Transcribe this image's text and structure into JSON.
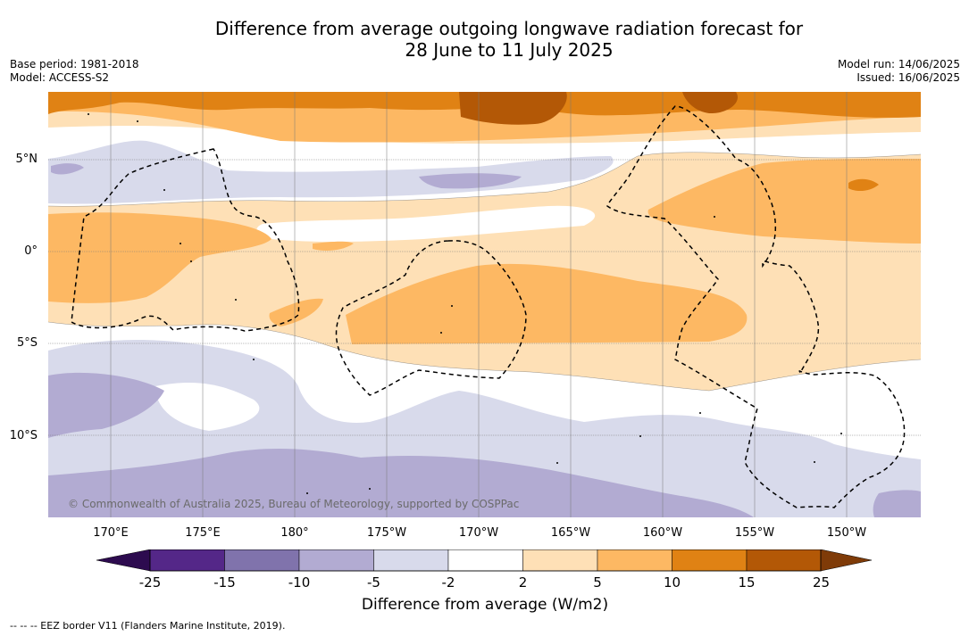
{
  "title": {
    "line1": "Difference from average outgoing longwave radiation forecast for",
    "line2": "28 June to 11 July 2025"
  },
  "meta": {
    "base_period": "Base period: 1981-2018",
    "model": "Model: ACCESS-S2",
    "model_run": "Model run: 14/06/2025",
    "issued": "Issued: 16/06/2025"
  },
  "map": {
    "lat_labels": [
      "5°N",
      "0°",
      "5°S",
      "10°S"
    ],
    "lon_labels": [
      "170°E",
      "175°E",
      "180°",
      "175°W",
      "170°W",
      "165°W",
      "160°W",
      "155°W",
      "150°W"
    ],
    "copyright": "© Commonwealth of Australia 2025, Bureau of Meteorology, supported by COSPPac"
  },
  "colorbar": {
    "ticks": [
      "-25",
      "-15",
      "-10",
      "-5",
      "-2",
      "2",
      "5",
      "10",
      "15",
      "25"
    ],
    "label": "Difference from average (W/m2)",
    "colors": {
      "min_extend": "#2d0b4f",
      "lt_-15": "#542788",
      "lt_-10": "#8073ac",
      "lt_-5": "#b2abd2",
      "lt_-2": "#d8daeb",
      "neutral": "#ffffff",
      "gt_2": "#fee0b6",
      "gt_5": "#fdb863",
      "gt_10": "#e08214",
      "gt_15": "#b35806",
      "max_extend": "#7f3b08"
    }
  },
  "footnote": "--  --  -- EEZ border V11 (Flanders Marine Institute, 2019)."
}
